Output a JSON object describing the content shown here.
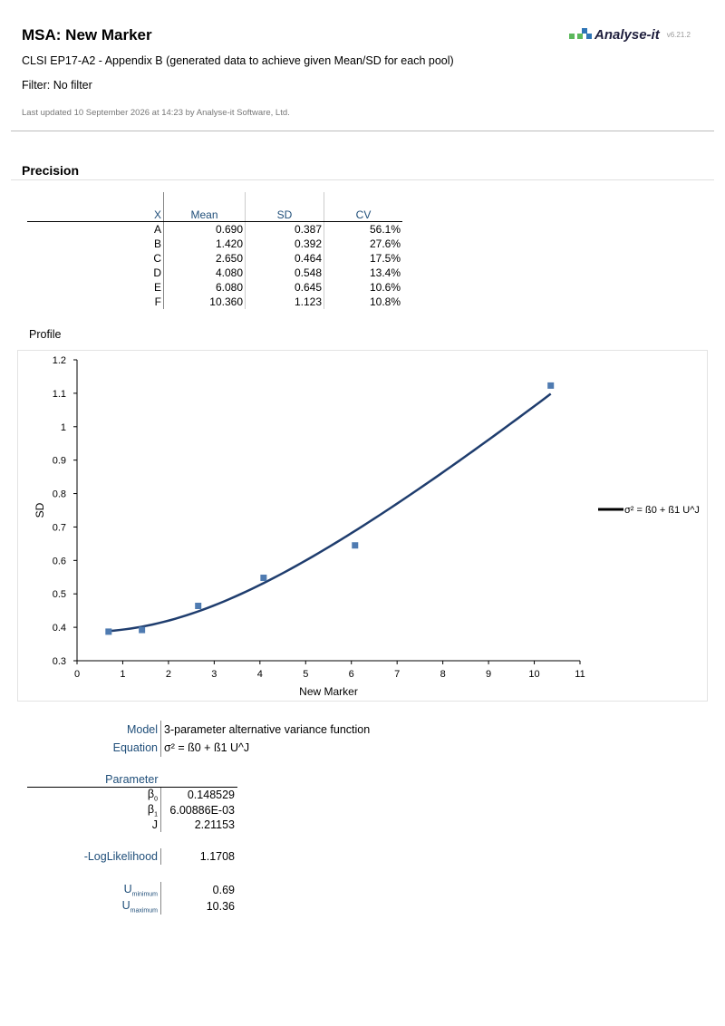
{
  "header": {
    "title": "MSA: New Marker",
    "subtitle": "CLSI EP17-A2 - Appendix B (generated data to achieve given Mean/SD for each pool)",
    "filter": "Filter: No filter",
    "updated": "Last updated 10 September 2026 at 14:23 by Analyse-it Software, Ltd.",
    "logo_text": "Analyse-it",
    "version": "v6.21.2",
    "colors": {
      "logo_green": "#5cb85c",
      "logo_blue": "#2e75b6"
    }
  },
  "precision": {
    "section_title": "Precision",
    "columns": [
      "X",
      "Mean",
      "SD",
      "CV"
    ],
    "rows": [
      {
        "x": "A",
        "mean": "0.690",
        "sd": "0.387",
        "cv": "56.1%"
      },
      {
        "x": "B",
        "mean": "1.420",
        "sd": "0.392",
        "cv": "27.6%"
      },
      {
        "x": "C",
        "mean": "2.650",
        "sd": "0.464",
        "cv": "17.5%"
      },
      {
        "x": "D",
        "mean": "4.080",
        "sd": "0.548",
        "cv": "13.4%"
      },
      {
        "x": "E",
        "mean": "6.080",
        "sd": "0.645",
        "cv": "10.6%"
      },
      {
        "x": "F",
        "mean": "10.360",
        "sd": "1.123",
        "cv": "10.8%"
      }
    ]
  },
  "profile_label": "Profile",
  "chart_data": {
    "type": "scatter",
    "xlabel": "New Marker",
    "ylabel": "SD",
    "xlim": [
      0,
      11
    ],
    "ylim": [
      0.3,
      1.2
    ],
    "x_ticks": [
      0,
      1,
      2,
      3,
      4,
      5,
      6,
      7,
      8,
      9,
      10,
      11
    ],
    "y_ticks": [
      0.3,
      0.4,
      0.5,
      0.6,
      0.7,
      0.8,
      0.9,
      1,
      1.1,
      1.2
    ],
    "y_tick_labels": [
      "0.3",
      "0.4",
      "0.5",
      "0.6",
      "0.7",
      "0.8",
      "0.9",
      "1",
      "1.1",
      "1.2"
    ],
    "grid": false,
    "legend_placement": "right",
    "points": [
      {
        "x": 0.69,
        "y": 0.387
      },
      {
        "x": 1.42,
        "y": 0.392
      },
      {
        "x": 2.65,
        "y": 0.464
      },
      {
        "x": 4.08,
        "y": 0.548
      },
      {
        "x": 6.08,
        "y": 0.645
      },
      {
        "x": 10.36,
        "y": 1.123
      }
    ],
    "fit": {
      "name": "σ² = ß0 + ß1 U^J",
      "b0": 0.148529,
      "b1": 0.00600886,
      "J": 2.21153,
      "x_range": [
        0.69,
        10.36
      ]
    },
    "colors": {
      "points": "#4f7bb1",
      "line": "#1f3d6e"
    }
  },
  "model": {
    "model_label": "Model",
    "model_value": "3-parameter alternative variance function",
    "equation_label": "Equation",
    "equation_value": "σ² = ß0 + ß1 U^J"
  },
  "parameters": {
    "header": "Parameter",
    "rows": [
      {
        "name": "β",
        "sub": "0",
        "value": "0.148529"
      },
      {
        "name": "β",
        "sub": "1",
        "value": "6.00886E-03"
      },
      {
        "name": "J",
        "sub": "",
        "value": "2.21153"
      }
    ]
  },
  "loglik": {
    "label": "-LogLikelihood",
    "value": "1.1708"
  },
  "range": {
    "rows": [
      {
        "name": "U",
        "sub": "minimum",
        "value": "0.69"
      },
      {
        "name": "U",
        "sub": "maximum",
        "value": "10.36"
      }
    ]
  }
}
